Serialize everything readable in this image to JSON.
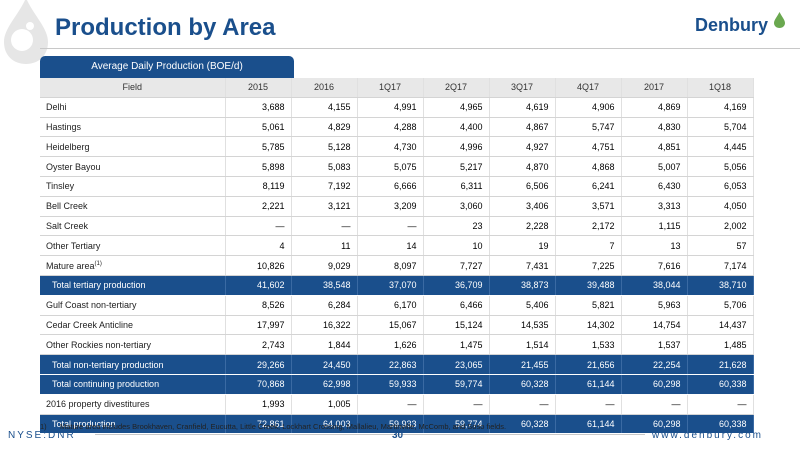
{
  "header": {
    "title": "Production by Area",
    "logo_text": "Denbury"
  },
  "table": {
    "caption": "Average Daily Production (BOE/d)",
    "columns": [
      "Field",
      "2015",
      "2016",
      "1Q17",
      "2Q17",
      "3Q17",
      "4Q17",
      "2017",
      "1Q18"
    ],
    "rows": [
      {
        "field": "Delhi",
        "sup": "",
        "values": [
          "3,688",
          "4,155",
          "4,991",
          "4,965",
          "4,619",
          "4,906",
          "4,869",
          "4,169"
        ],
        "total": false
      },
      {
        "field": "Hastings",
        "sup": "",
        "values": [
          "5,061",
          "4,829",
          "4,288",
          "4,400",
          "4,867",
          "5,747",
          "4,830",
          "5,704"
        ],
        "total": false
      },
      {
        "field": "Heidelberg",
        "sup": "",
        "values": [
          "5,785",
          "5,128",
          "4,730",
          "4,996",
          "4,927",
          "4,751",
          "4,851",
          "4,445"
        ],
        "total": false
      },
      {
        "field": "Oyster Bayou",
        "sup": "",
        "values": [
          "5,898",
          "5,083",
          "5,075",
          "5,217",
          "4,870",
          "4,868",
          "5,007",
          "5,056"
        ],
        "total": false
      },
      {
        "field": "Tinsley",
        "sup": "",
        "values": [
          "8,119",
          "7,192",
          "6,666",
          "6,311",
          "6,506",
          "6,241",
          "6,430",
          "6,053"
        ],
        "total": false
      },
      {
        "field": "Bell Creek",
        "sup": "",
        "values": [
          "2,221",
          "3,121",
          "3,209",
          "3,060",
          "3,406",
          "3,571",
          "3,313",
          "4,050"
        ],
        "total": false
      },
      {
        "field": "Salt Creek",
        "sup": "",
        "values": [
          "—",
          "—",
          "—",
          "23",
          "2,228",
          "2,172",
          "1,115",
          "2,002"
        ],
        "total": false
      },
      {
        "field": "Other Tertiary",
        "sup": "",
        "values": [
          "4",
          "11",
          "14",
          "10",
          "19",
          "7",
          "13",
          "57"
        ],
        "total": false
      },
      {
        "field": "Mature area",
        "sup": "(1)",
        "values": [
          "10,826",
          "9,029",
          "8,097",
          "7,727",
          "7,431",
          "7,225",
          "7,616",
          "7,174"
        ],
        "total": false
      },
      {
        "field": "Total tertiary production",
        "sup": "",
        "values": [
          "41,602",
          "38,548",
          "37,070",
          "36,709",
          "38,873",
          "39,488",
          "38,044",
          "38,710"
        ],
        "total": true
      },
      {
        "field": "Gulf Coast non-tertiary",
        "sup": "",
        "values": [
          "8,526",
          "6,284",
          "6,170",
          "6,466",
          "5,406",
          "5,821",
          "5,963",
          "5,706"
        ],
        "total": false
      },
      {
        "field": "Cedar Creek Anticline",
        "sup": "",
        "values": [
          "17,997",
          "16,322",
          "15,067",
          "15,124",
          "14,535",
          "14,302",
          "14,754",
          "14,437"
        ],
        "total": false
      },
      {
        "field": "Other Rockies non-tertiary",
        "sup": "",
        "values": [
          "2,743",
          "1,844",
          "1,626",
          "1,475",
          "1,514",
          "1,533",
          "1,537",
          "1,485"
        ],
        "total": false
      },
      {
        "field": "Total non-tertiary production",
        "sup": "",
        "values": [
          "29,266",
          "24,450",
          "22,863",
          "23,065",
          "21,455",
          "21,656",
          "22,254",
          "21,628"
        ],
        "total": true
      },
      {
        "field": "Total continuing production",
        "sup": "",
        "values": [
          "70,868",
          "62,998",
          "59,933",
          "59,774",
          "60,328",
          "61,144",
          "60,298",
          "60,338"
        ],
        "total": true
      },
      {
        "field": "2016 property divestitures",
        "sup": "",
        "values": [
          "1,993",
          "1,005",
          "—",
          "—",
          "—",
          "—",
          "—",
          "—"
        ],
        "total": false
      },
      {
        "field": "Total production",
        "sup": "",
        "values": [
          "72,861",
          "64,003",
          "59,933",
          "59,774",
          "60,328",
          "61,144",
          "60,298",
          "60,338"
        ],
        "total": true
      }
    ]
  },
  "footnote": {
    "number": "1)",
    "text": "Mature area includes Brookhaven, Cranfield, Eucutta, Little Creek, Lockhart Crossing, Mallalieu, Martinville, McComb, and Soso fields."
  },
  "footer": {
    "ticker": "NYSE:DNR",
    "page_number": "30",
    "website": "www.denbury.com"
  },
  "colors": {
    "brand_blue": "#1a4f8c",
    "header_gray": "#e8e8e8",
    "logo_green": "#6aa84f"
  }
}
